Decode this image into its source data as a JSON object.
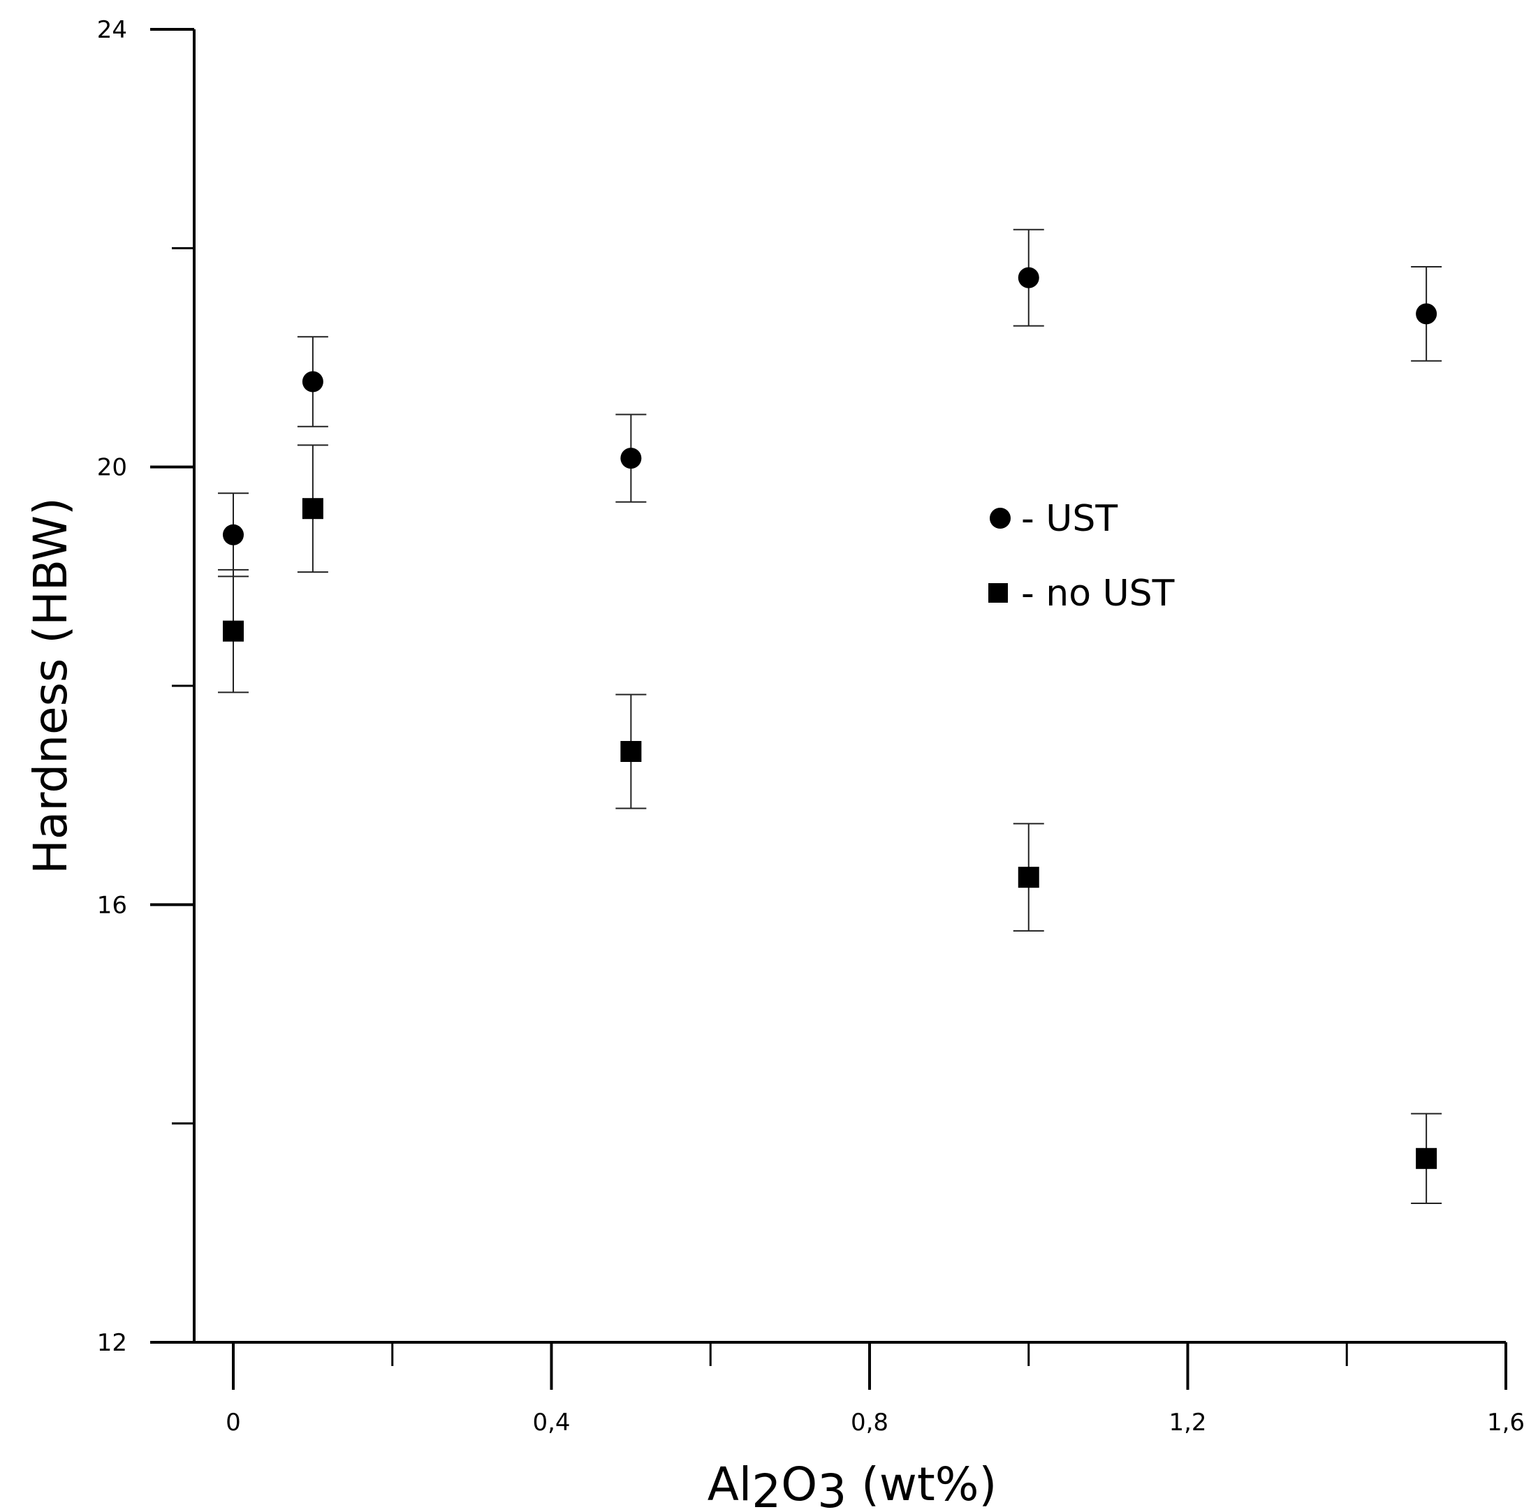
{
  "chart_data": {
    "type": "scatter",
    "title": "",
    "xlabel": "Al2O3 (wt%)",
    "ylabel": "Hardness (HBW)",
    "xlim": [
      -0.1,
      1.6
    ],
    "ylim": [
      12,
      24
    ],
    "x_ticks_major": [
      0,
      0.4,
      0.8,
      1.2,
      1.6
    ],
    "x_tick_labels": [
      "0",
      "0,4",
      "0,8",
      "1,2",
      "1,6"
    ],
    "x_ticks_minor": [
      0.2,
      0.6,
      1.0,
      1.4
    ],
    "y_ticks_major": [
      12,
      16,
      20,
      24
    ],
    "y_tick_labels": [
      "12",
      "16",
      "20",
      "24"
    ],
    "y_ticks_minor": [
      14,
      18,
      22
    ],
    "grid": false,
    "legend_position": "right-center",
    "series": [
      {
        "name": "- UST",
        "marker": "circle",
        "x": [
          0,
          0.1,
          0.5,
          1.0,
          1.5
        ],
        "y": [
          19.38,
          20.78,
          20.08,
          21.73,
          21.4
        ],
        "err": [
          0.38,
          0.41,
          0.4,
          0.44,
          0.43
        ]
      },
      {
        "name": "- no UST",
        "marker": "square",
        "x": [
          0,
          0.1,
          0.5,
          1.0,
          1.5
        ],
        "y": [
          18.5,
          19.62,
          17.4,
          16.25,
          13.68
        ],
        "err": [
          0.56,
          0.58,
          0.52,
          0.49,
          0.41
        ]
      }
    ]
  }
}
